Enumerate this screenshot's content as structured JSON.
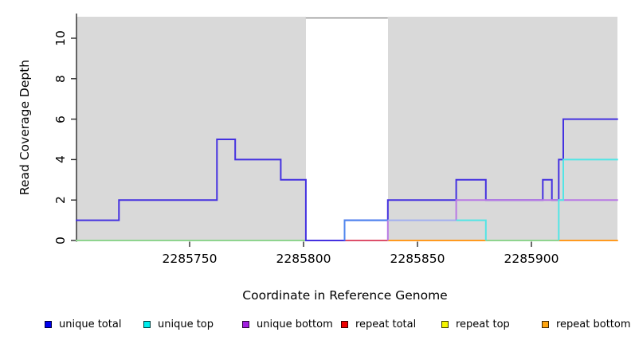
{
  "figure": {
    "background_color": "#ffffff",
    "panel_color": "#d9d9d9",
    "axis_color": "#2b2b2b"
  },
  "chart_data": {
    "type": "line",
    "title": "",
    "xlabel": "Coordinate in Reference Genome",
    "ylabel": "Read Coverage Depth",
    "xlim": [
      2285700,
      2285938
    ],
    "ylim": [
      0,
      11.1
    ],
    "grid": false,
    "legend_position": "bottom",
    "x_tick_values": [
      2285750,
      2285800,
      2285850,
      2285900
    ],
    "x_tick_labels": [
      "2285750",
      "2285800",
      "2285850",
      "2285900"
    ],
    "y_tick_values": [
      0,
      2,
      4,
      6,
      8,
      10
    ],
    "y_tick_labels": [
      "0",
      "2",
      "4",
      "6",
      "8",
      "10"
    ],
    "highlight_region": {
      "x1": 2285801,
      "x2": 2285837,
      "y1": 0,
      "y2": 11,
      "fill": "#ffffff",
      "border": "#8a8a8a",
      "meaning": "white band (no-data gap) over gray panel"
    },
    "series": [
      {
        "name": "unique total",
        "color": "#4431e0",
        "steps": [
          [
            2285700,
            1
          ],
          [
            2285719,
            2
          ],
          [
            2285762,
            5
          ],
          [
            2285770,
            4
          ],
          [
            2285790,
            3
          ],
          [
            2285801,
            0
          ],
          [
            2285818,
            1
          ],
          [
            2285837,
            2
          ],
          [
            2285867,
            3
          ],
          [
            2285880,
            2
          ],
          [
            2285905,
            3
          ],
          [
            2285909,
            2
          ],
          [
            2285912,
            4
          ],
          [
            2285914,
            6
          ],
          [
            2285938,
            6
          ]
        ]
      },
      {
        "name": "unique top",
        "color": "#33e2e2",
        "steps": [
          [
            2285700,
            0
          ],
          [
            2285818,
            1
          ],
          [
            2285880,
            0
          ],
          [
            2285912,
            2
          ],
          [
            2285914,
            4
          ],
          [
            2285938,
            4
          ]
        ]
      },
      {
        "name": "unique bottom",
        "color": "#b879e4",
        "steps": [
          [
            2285700,
            0
          ],
          [
            2285837,
            1
          ],
          [
            2285867,
            2
          ],
          [
            2285938,
            2
          ]
        ]
      },
      {
        "name": "repeat total",
        "color": "#ee0000",
        "steps": [
          [
            2285700,
            0
          ],
          [
            2285938,
            0
          ]
        ]
      },
      {
        "name": "repeat top",
        "color": "#f0f000",
        "steps": [
          [
            2285700,
            0
          ],
          [
            2285938,
            0
          ]
        ]
      },
      {
        "name": "repeat bottom",
        "color": "#ffa40f",
        "steps": [
          [
            2285700,
            0
          ],
          [
            2285938,
            0
          ]
        ]
      }
    ],
    "render_segments": [
      {
        "note": "baseline overlap blend",
        "color": "#8fd48f",
        "pts": [
          [
            2285700,
            0
          ],
          [
            2285801,
            0
          ]
        ]
      },
      {
        "note": "baseline overlap blend",
        "color": "#dd4f6a",
        "pts": [
          [
            2285818,
            0
          ],
          [
            2285837,
            0
          ]
        ]
      },
      {
        "note": "baseline overlap blend",
        "color": "#ff9a1f",
        "pts": [
          [
            2285837,
            0
          ],
          [
            2285880,
            0
          ]
        ]
      },
      {
        "note": "baseline overlap blend",
        "color": "#8fd48f",
        "pts": [
          [
            2285880,
            0
          ],
          [
            2285912,
            0
          ]
        ]
      },
      {
        "note": "baseline overlap blend",
        "color": "#ff9a1f",
        "pts": [
          [
            2285912,
            0
          ],
          [
            2285938,
            0
          ]
        ]
      },
      {
        "note": "unique total",
        "color": "#4431e0",
        "pts": [
          [
            2285700,
            1
          ],
          [
            2285719,
            1
          ],
          [
            2285719,
            2
          ],
          [
            2285762,
            2
          ],
          [
            2285762,
            5
          ],
          [
            2285770,
            5
          ],
          [
            2285770,
            4
          ],
          [
            2285790,
            4
          ],
          [
            2285790,
            3
          ],
          [
            2285801,
            3
          ],
          [
            2285801,
            0
          ],
          [
            2285818,
            0
          ],
          [
            2285818,
            1
          ],
          [
            2285837,
            1
          ],
          [
            2285837,
            2
          ],
          [
            2285867,
            2
          ],
          [
            2285867,
            3
          ],
          [
            2285880,
            3
          ],
          [
            2285880,
            2
          ],
          [
            2285905,
            2
          ],
          [
            2285905,
            3
          ],
          [
            2285909,
            3
          ],
          [
            2285909,
            2
          ],
          [
            2285912,
            2
          ],
          [
            2285912,
            4
          ],
          [
            2285914,
            4
          ],
          [
            2285914,
            6
          ],
          [
            2285938,
            6
          ]
        ]
      },
      {
        "note": "blue+cyan overlap",
        "color": "#4f86ee",
        "pts": [
          [
            2285818,
            0
          ],
          [
            2285818,
            1
          ],
          [
            2285837,
            1
          ]
        ]
      },
      {
        "note": "unique bottom rise",
        "color": "#b879e4",
        "pts": [
          [
            2285837,
            0
          ],
          [
            2285837,
            1
          ]
        ]
      },
      {
        "note": "cyan+purple overlap",
        "color": "#a2aef0",
        "pts": [
          [
            2285837,
            1
          ],
          [
            2285867,
            1
          ]
        ]
      },
      {
        "note": "unique bottom",
        "color": "#b879e4",
        "pts": [
          [
            2285867,
            1
          ],
          [
            2285867,
            2
          ],
          [
            2285938,
            2
          ]
        ]
      },
      {
        "note": "unique top",
        "color": "#52e5e5",
        "pts": [
          [
            2285867,
            1
          ],
          [
            2285880,
            1
          ],
          [
            2285880,
            0
          ]
        ]
      },
      {
        "note": "unique top",
        "color": "#52e5e5",
        "pts": [
          [
            2285912,
            0
          ],
          [
            2285912,
            2
          ],
          [
            2285914,
            2
          ],
          [
            2285914,
            4
          ],
          [
            2285938,
            4
          ]
        ]
      }
    ]
  },
  "legend": {
    "items": [
      {
        "label": "unique total",
        "color": "#0000ee"
      },
      {
        "label": "unique top",
        "color": "#00eded"
      },
      {
        "label": "unique bottom",
        "color": "#a21fe0"
      },
      {
        "label": "repeat total",
        "color": "#ee0000"
      },
      {
        "label": "repeat top",
        "color": "#f5f500"
      },
      {
        "label": "repeat bottom",
        "color": "#ffa510"
      }
    ]
  }
}
